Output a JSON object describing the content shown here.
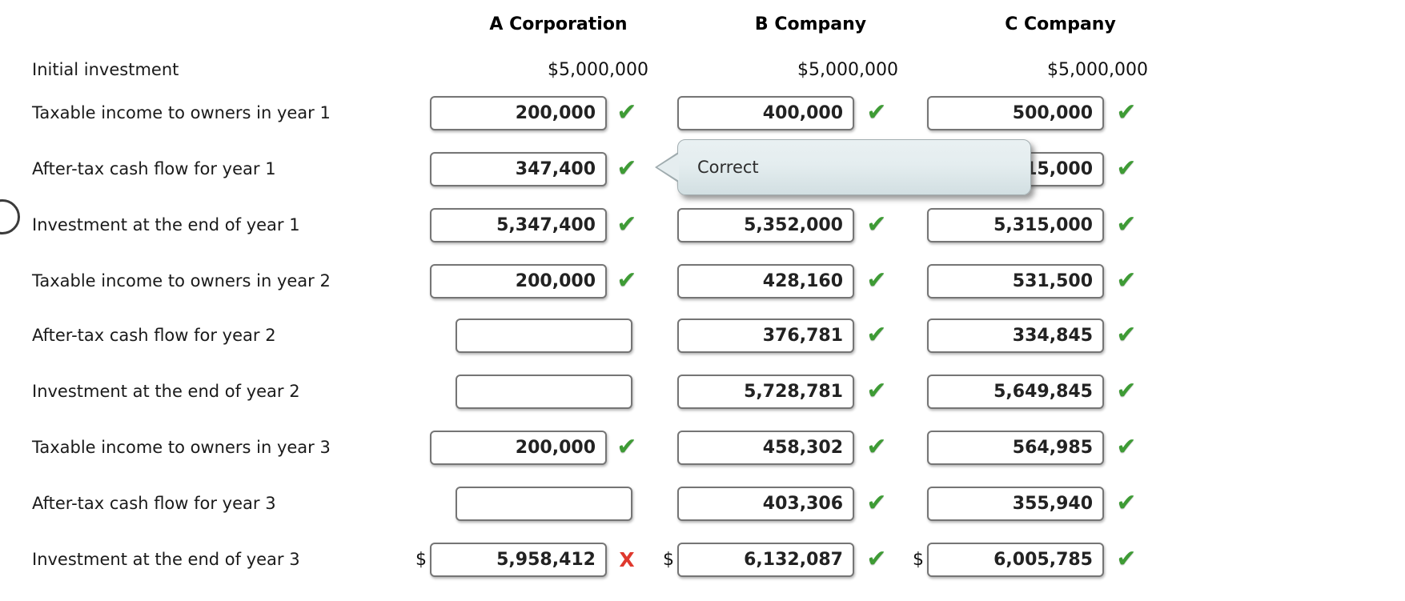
{
  "columns": [
    {
      "label": "A Corporation"
    },
    {
      "label": "B Company"
    },
    {
      "label": "C Company"
    }
  ],
  "icons": {
    "check": "✔",
    "x": "X"
  },
  "colors": {
    "correct_green": "#3e9b35",
    "incorrect_red": "#df392e",
    "tooltip_top": "#e9f0f2",
    "tooltip_bottom": "#d2dfe2"
  },
  "tooltip": {
    "text": "Correct"
  },
  "rows": [
    {
      "label": "Initial investment",
      "values": [
        "$5,000,000",
        "$5,000,000",
        "$5,000,000"
      ]
    },
    {
      "label": "Taxable income to owners in year 1",
      "cells": [
        {
          "value": "200,000",
          "mark_icon": "✔"
        },
        {
          "value": "400,000",
          "mark_icon": "✔"
        },
        {
          "value": "500,000",
          "mark_icon": "✔"
        }
      ]
    },
    {
      "label": "After-tax cash flow for year 1",
      "cells": [
        {
          "value": "347,400",
          "mark_icon": "✔"
        },
        {
          "value": "",
          "mark_icon": ""
        },
        {
          "value": "315,000",
          "mark_icon": "✔"
        }
      ]
    },
    {
      "label": "Investment at the end of year 1",
      "cells": [
        {
          "value": "5,347,400",
          "mark_icon": "✔"
        },
        {
          "value": "5,352,000",
          "mark_icon": "✔"
        },
        {
          "value": "5,315,000",
          "mark_icon": "✔"
        }
      ]
    },
    {
      "label": "Taxable income to owners in year 2",
      "cells": [
        {
          "value": "200,000",
          "mark_icon": "✔"
        },
        {
          "value": "428,160",
          "mark_icon": "✔"
        },
        {
          "value": "531,500",
          "mark_icon": "✔"
        }
      ]
    },
    {
      "label": "After-tax cash flow for year 2",
      "cells": [
        {
          "value": "",
          "mark_icon": ""
        },
        {
          "value": "376,781",
          "mark_icon": "✔"
        },
        {
          "value": "334,845",
          "mark_icon": "✔"
        }
      ]
    },
    {
      "label": "Investment at the end of year 2",
      "cells": [
        {
          "value": "",
          "mark_icon": ""
        },
        {
          "value": "5,728,781",
          "mark_icon": "✔"
        },
        {
          "value": "5,649,845",
          "mark_icon": "✔"
        }
      ]
    },
    {
      "label": "Taxable income to owners in year 3",
      "cells": [
        {
          "value": "200,000",
          "mark_icon": "✔"
        },
        {
          "value": "458,302",
          "mark_icon": "✔"
        },
        {
          "value": "564,985",
          "mark_icon": "✔"
        }
      ]
    },
    {
      "label": "After-tax cash flow for year 3",
      "cells": [
        {
          "value": "",
          "mark_icon": ""
        },
        {
          "value": "403,306",
          "mark_icon": "✔"
        },
        {
          "value": "355,940",
          "mark_icon": "✔"
        }
      ]
    },
    {
      "label": "Investment at the end of year 3",
      "prefix": "$",
      "cells": [
        {
          "value": "5,958,412",
          "mark_icon": "X"
        },
        {
          "value": "6,132,087",
          "mark_icon": "✔"
        },
        {
          "value": "6,005,785",
          "mark_icon": "✔"
        }
      ]
    }
  ]
}
